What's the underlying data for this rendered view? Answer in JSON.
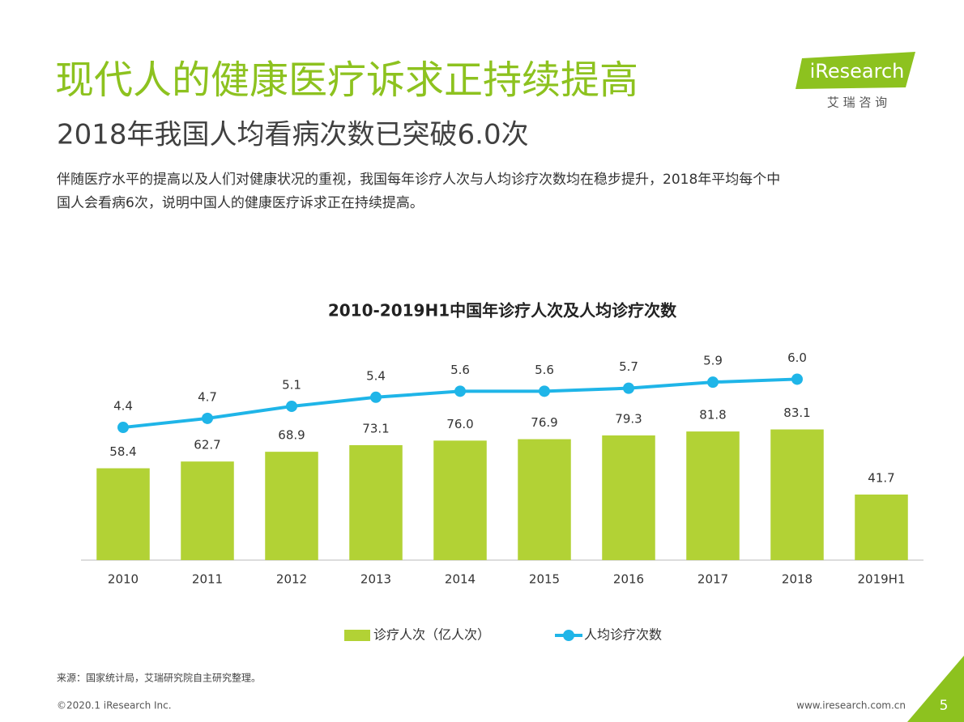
{
  "header": {
    "title": "现代人的健康医疗诉求正持续提高",
    "subtitle": "2018年我国人均看病次数已突破6.0次",
    "description": [
      "伴随医疗水平的提高以及人们对健康状况的重视，我国每年诊疗人次与人均诊疗次数均在稳步提升，2018年平均每个中",
      "国人会看病6次，说明中国人的健康医疗诉求正在持续提高。"
    ]
  },
  "logo": {
    "name": "iResearch",
    "chinese": "艾 瑞 咨 询"
  },
  "chart_data": {
    "type": "bar",
    "title": "2010-2019H1中国年诊疗人次及人均诊疗次数",
    "categories": [
      "2010",
      "2011",
      "2012",
      "2013",
      "2014",
      "2015",
      "2016",
      "2017",
      "2018",
      "2019H1"
    ],
    "series": [
      {
        "name": "诊疗人次（亿人次）",
        "type": "bar",
        "color": "#b2d235",
        "values": [
          58.4,
          62.7,
          68.9,
          73.1,
          76,
          76.9,
          79.3,
          81.8,
          83.1,
          41.7
        ],
        "value_labels": [
          "58.4",
          "62.7",
          "68.9",
          "73.1",
          "76.0",
          "76.9",
          "79.3",
          "81.8",
          "83.1",
          "41.7"
        ]
      },
      {
        "name": "人均诊疗次数",
        "type": "line",
        "axis": "y2",
        "color": "#1fb5e8",
        "values": [
          4.4,
          4.7,
          5.1,
          5.4,
          5.6,
          5.6,
          5.7,
          5.9,
          6,
          null
        ],
        "value_labels": [
          "4.4",
          "4.7",
          "5.1",
          "5.4",
          "5.6",
          "5.6",
          "5.7",
          "5.9",
          "6.0",
          null
        ]
      }
    ],
    "ylim": [
      0,
      140
    ],
    "y2lim": [
      0,
      7.3
    ],
    "legend": "bottom"
  },
  "source": "来源：国家统计局，艾瑞研究院自主研究整理。",
  "footer": {
    "copyright": "©2020.1 iResearch Inc.",
    "website": "www.iresearch.com.cn",
    "page": "5"
  }
}
